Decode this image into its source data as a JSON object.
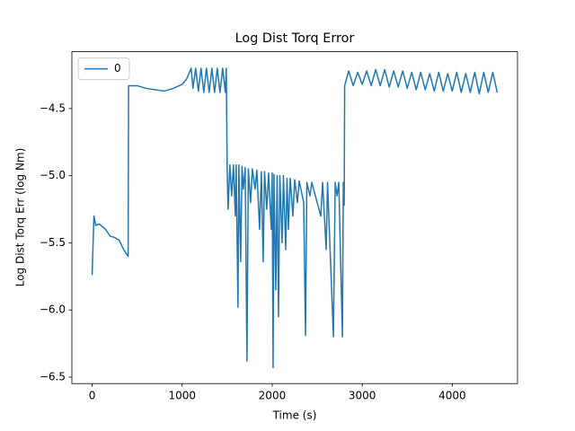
{
  "chart_data": {
    "type": "line",
    "title": "Log Dist Torq Error",
    "x_label": "Time (s)",
    "y_label": "Log Dist Torq Err (log Nm)",
    "x": [
      0,
      20,
      40,
      80,
      150,
      200,
      250,
      300,
      350,
      380,
      400,
      405,
      500,
      600,
      700,
      800,
      900,
      1000,
      1050,
      1100,
      1120,
      1150,
      1180,
      1210,
      1240,
      1270,
      1300,
      1330,
      1360,
      1390,
      1420,
      1450,
      1480,
      1490,
      1500,
      1510,
      1530,
      1550,
      1570,
      1590,
      1600,
      1620,
      1630,
      1650,
      1665,
      1680,
      1700,
      1720,
      1735,
      1760,
      1780,
      1810,
      1830,
      1860,
      1880,
      1900,
      1915,
      1940,
      1960,
      1990,
      2000,
      2010,
      2020,
      2040,
      2055,
      2070,
      2085,
      2110,
      2125,
      2150,
      2165,
      2180,
      2200,
      2230,
      2250,
      2280,
      2300,
      2350,
      2370,
      2385,
      2420,
      2440,
      2540,
      2560,
      2600,
      2615,
      2680,
      2700,
      2720,
      2740,
      2780,
      2790,
      2800,
      2805,
      2850,
      2900,
      2950,
      3000,
      3050,
      3100,
      3150,
      3200,
      3250,
      3300,
      3350,
      3400,
      3450,
      3500,
      3550,
      3600,
      3650,
      3700,
      3750,
      3800,
      3850,
      3900,
      3950,
      4000,
      4050,
      4100,
      4150,
      4200,
      4250,
      4300,
      4350,
      4400,
      4450,
      4500
    ],
    "series": [
      {
        "name": "0",
        "color": "#1f77b4",
        "values": [
          -5.74,
          -5.3,
          -5.37,
          -5.36,
          -5.4,
          -5.45,
          -5.46,
          -5.48,
          -5.55,
          -5.58,
          -5.6,
          -4.33,
          -4.33,
          -4.35,
          -4.36,
          -4.37,
          -4.35,
          -4.32,
          -4.28,
          -4.2,
          -4.35,
          -4.2,
          -4.37,
          -4.2,
          -4.38,
          -4.2,
          -4.38,
          -4.2,
          -4.38,
          -4.2,
          -4.38,
          -4.2,
          -4.38,
          -4.2,
          -4.95,
          -5.25,
          -4.92,
          -5.15,
          -4.92,
          -5.3,
          -4.92,
          -5.98,
          -4.92,
          -5.64,
          -4.93,
          -5.1,
          -4.94,
          -6.38,
          -4.95,
          -5.2,
          -4.95,
          -5.1,
          -4.96,
          -5.4,
          -4.97,
          -5.64,
          -4.97,
          -5.25,
          -4.98,
          -5.4,
          -4.98,
          -6.43,
          -4.99,
          -5.85,
          -5.0,
          -6.05,
          -5.0,
          -5.5,
          -5.0,
          -5.55,
          -5.02,
          -5.4,
          -5.02,
          -5.3,
          -5.03,
          -5.2,
          -5.04,
          -5.2,
          -6.19,
          -5.05,
          -5.15,
          -5.05,
          -5.3,
          -5.05,
          -5.55,
          -5.05,
          -6.2,
          -5.05,
          -5.15,
          -5.05,
          -6.2,
          -5.05,
          -5.22,
          -4.33,
          -4.22,
          -4.33,
          -4.23,
          -4.32,
          -4.22,
          -4.33,
          -4.21,
          -4.33,
          -4.21,
          -4.34,
          -4.22,
          -4.34,
          -4.22,
          -4.35,
          -4.23,
          -4.36,
          -4.23,
          -4.36,
          -4.24,
          -4.37,
          -4.23,
          -4.37,
          -4.24,
          -4.37,
          -4.23,
          -4.38,
          -4.24,
          -4.38,
          -4.23,
          -4.39,
          -4.23,
          -4.38,
          -4.23,
          -4.38
        ]
      }
    ],
    "xlim": [
      -225,
      4725
    ],
    "xticks": [
      0,
      1000,
      2000,
      3000,
      4000
    ],
    "ylim": [
      -6.548,
      -4.077
    ],
    "yticks": [
      {
        "value": -6.5,
        "label": "−6.5"
      },
      {
        "value": -6.0,
        "label": "−6.0"
      },
      {
        "value": -5.5,
        "label": "−5.5"
      },
      {
        "value": -5.0,
        "label": "−5.0"
      },
      {
        "value": -4.5,
        "label": "−4.5"
      }
    ],
    "legend": "upper left",
    "grid": false
  }
}
